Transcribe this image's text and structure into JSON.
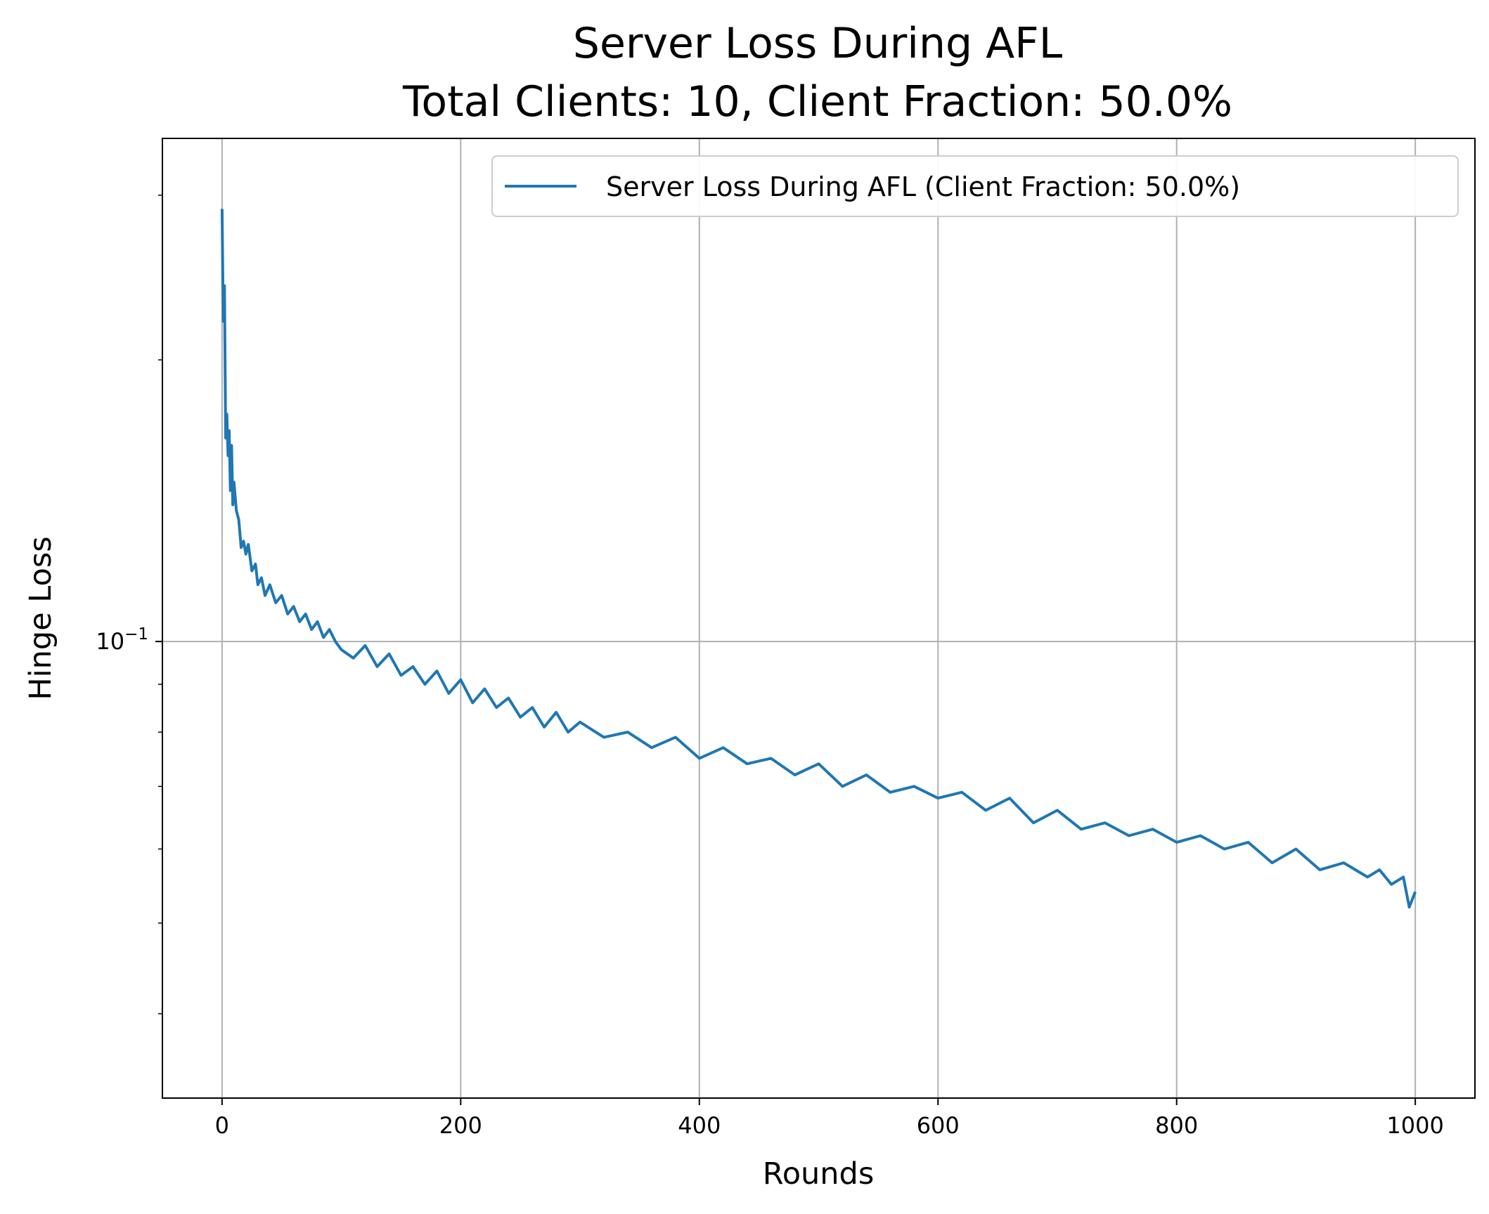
{
  "chart_data": {
    "type": "line",
    "title": "Server Loss During AFL",
    "subtitle": "Total Clients: 10, Client Fraction: 50.0%",
    "xlabel": "Rounds",
    "ylabel": "Hinge Loss",
    "x_scale": "linear",
    "y_scale": "log",
    "xlim": [
      -50,
      1050
    ],
    "ylim": [
      0.0325,
      0.345
    ],
    "x_ticks": [
      0,
      200,
      400,
      600,
      800,
      1000
    ],
    "x_tick_labels": [
      "0",
      "200",
      "400",
      "600",
      "800",
      "1000"
    ],
    "y_major_ticks": [
      0.1
    ],
    "y_major_tick_labels": {
      "base": "10",
      "exponent": "−1"
    },
    "y_minor_ticks": [
      0.04,
      0.05,
      0.06,
      0.07,
      0.08,
      0.09,
      0.2,
      0.3
    ],
    "grid": true,
    "legend_position": "top-right",
    "series": [
      {
        "name": "Server Loss During AFL (Client Fraction: 50.0%)",
        "color": "#1f77b4",
        "x": [
          0,
          1,
          2,
          3,
          4,
          5,
          6,
          7,
          8,
          9,
          10,
          12,
          14,
          16,
          18,
          20,
          22,
          25,
          28,
          30,
          33,
          36,
          40,
          45,
          50,
          55,
          60,
          65,
          70,
          75,
          80,
          85,
          90,
          95,
          100,
          110,
          120,
          130,
          140,
          150,
          160,
          170,
          180,
          190,
          200,
          210,
          220,
          230,
          240,
          250,
          260,
          270,
          280,
          290,
          300,
          320,
          340,
          360,
          380,
          400,
          420,
          440,
          460,
          480,
          500,
          520,
          540,
          560,
          580,
          600,
          620,
          640,
          660,
          680,
          700,
          720,
          740,
          760,
          780,
          800,
          820,
          840,
          860,
          880,
          900,
          920,
          940,
          960,
          970,
          980,
          990,
          995,
          1000
        ],
        "y": [
          0.29,
          0.22,
          0.24,
          0.165,
          0.175,
          0.158,
          0.168,
          0.145,
          0.162,
          0.14,
          0.148,
          0.138,
          0.135,
          0.126,
          0.128,
          0.124,
          0.127,
          0.119,
          0.121,
          0.115,
          0.117,
          0.112,
          0.115,
          0.11,
          0.112,
          0.107,
          0.109,
          0.105,
          0.107,
          0.103,
          0.105,
          0.101,
          0.103,
          0.1,
          0.098,
          0.096,
          0.099,
          0.094,
          0.097,
          0.092,
          0.094,
          0.09,
          0.093,
          0.088,
          0.091,
          0.086,
          0.089,
          0.085,
          0.087,
          0.083,
          0.085,
          0.081,
          0.084,
          0.08,
          0.082,
          0.079,
          0.08,
          0.077,
          0.079,
          0.075,
          0.077,
          0.074,
          0.075,
          0.072,
          0.074,
          0.07,
          0.072,
          0.069,
          0.07,
          0.068,
          0.069,
          0.066,
          0.068,
          0.064,
          0.066,
          0.063,
          0.064,
          0.062,
          0.063,
          0.061,
          0.062,
          0.06,
          0.061,
          0.058,
          0.06,
          0.057,
          0.058,
          0.056,
          0.057,
          0.055,
          0.056,
          0.052,
          0.054
        ]
      }
    ]
  }
}
